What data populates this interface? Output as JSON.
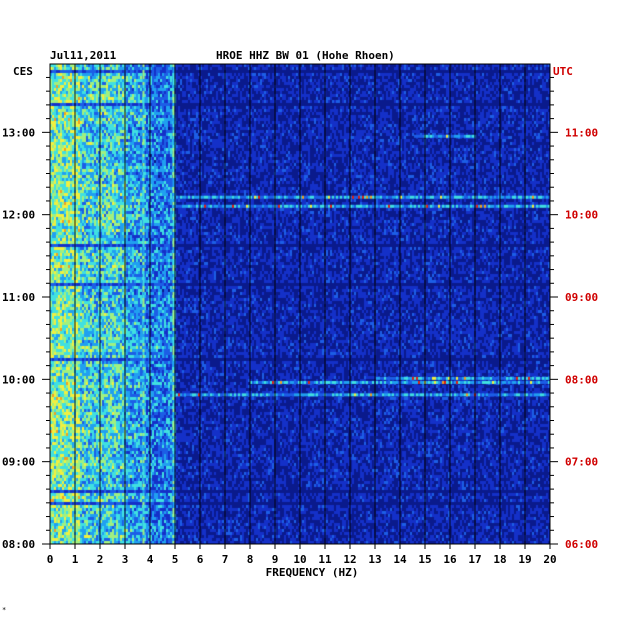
{
  "chart_data": {
    "type": "heatmap",
    "date": "Jul11,2011",
    "title": "HROE HHZ BW 01 (Hohe Rhoen)",
    "xlabel": "FREQUENCY (HZ)",
    "left_axis_label": "CES",
    "right_axis_label": "UTC",
    "xlim": [
      0,
      20
    ],
    "x_ticks": [
      "0",
      "1",
      "2",
      "3",
      "4",
      "5",
      "6",
      "7",
      "8",
      "9",
      "10",
      "11",
      "12",
      "13",
      "14",
      "15",
      "16",
      "17",
      "18",
      "19",
      "20"
    ],
    "left_ticks": [
      {
        "label": "13:00",
        "hour": 13
      },
      {
        "label": "12:00",
        "hour": 12
      },
      {
        "label": "11:00",
        "hour": 11
      },
      {
        "label": "10:00",
        "hour": 10
      },
      {
        "label": "09:00",
        "hour": 9
      },
      {
        "label": "08:00",
        "hour": 8
      }
    ],
    "right_ticks": [
      {
        "label": "11:00",
        "hour": 13
      },
      {
        "label": "10:00",
        "hour": 12
      },
      {
        "label": "09:00",
        "hour": 11
      },
      {
        "label": "08:00",
        "hour": 10
      },
      {
        "label": "07:00",
        "hour": 9
      },
      {
        "label": "06:00",
        "hour": 8
      }
    ],
    "time_range_ces": [
      8.0,
      13.83
    ],
    "grid": "vertical-per-hz",
    "strong_band_hz": [
      0,
      5
    ],
    "event_rows_ces": [
      {
        "time": 12.23,
        "from_hz": 5,
        "to_hz": 20
      },
      {
        "time": 12.12,
        "from_hz": 5,
        "to_hz": 20
      },
      {
        "time": 10.03,
        "from_hz": 13,
        "to_hz": 20
      },
      {
        "time": 9.98,
        "from_hz": 8,
        "to_hz": 20
      },
      {
        "time": 9.83,
        "from_hz": 5,
        "to_hz": 20
      },
      {
        "time": 12.97,
        "from_hz": 14.5,
        "to_hz": 17
      }
    ],
    "colormap": [
      "#0a1a8c",
      "#1430c8",
      "#1c5ee6",
      "#20a0f0",
      "#40e0e0",
      "#a0f080",
      "#f0f040",
      "#f0a020",
      "#e02010"
    ]
  },
  "corner_mark": "*"
}
